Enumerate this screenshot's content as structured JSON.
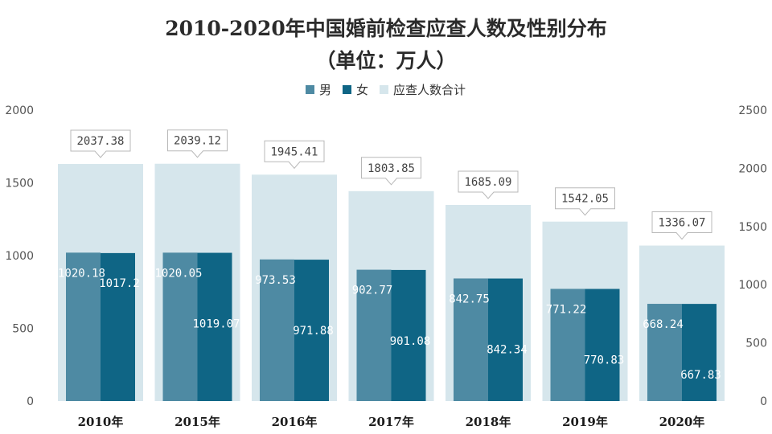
{
  "chart_data": {
    "type": "bar",
    "title": "2010-2020年中国婚前检查应查人数及性别分布",
    "subtitle": "（单位：万人）",
    "categories": [
      "2010年",
      "2015年",
      "2016年",
      "2017年",
      "2018年",
      "2019年",
      "2020年"
    ],
    "series": [
      {
        "name": "男",
        "axis": "left",
        "color": "#4e8aa3",
        "values": [
          1020.18,
          1020.05,
          973.53,
          902.77,
          842.75,
          771.22,
          668.24
        ]
      },
      {
        "name": "女",
        "axis": "left",
        "color": "#0f6585",
        "values": [
          1017.2,
          1019.07,
          971.88,
          901.08,
          842.34,
          770.83,
          667.83
        ]
      },
      {
        "name": "应查人数合计",
        "axis": "right",
        "color": "#d6e6ec",
        "values": [
          2037.38,
          2039.12,
          1945.41,
          1803.85,
          1685.09,
          1542.05,
          1336.07
        ]
      }
    ],
    "value_labels": {
      "男": [
        "1020.18",
        "1020.05",
        "973.53",
        "902.77",
        "842.75",
        "771.22",
        "668.24"
      ],
      "女": [
        "1017.2",
        "1019.07",
        "971.88",
        "901.08",
        "842.34",
        "770.83",
        "667.83"
      ],
      "应查人数合计": [
        "2037.38",
        "2039.12",
        "1945.41",
        "1803.85",
        "1685.09",
        "1542.05",
        "1336.07"
      ]
    },
    "ylim_left": [
      0,
      2000
    ],
    "yticks_left": [
      "0",
      "500",
      "1000",
      "1500",
      "2000"
    ],
    "ylim_right": [
      0,
      2500
    ],
    "yticks_right": [
      "0",
      "500",
      "1000",
      "1500",
      "2000",
      "2500"
    ],
    "grid": false,
    "legend_position": "top-center"
  }
}
